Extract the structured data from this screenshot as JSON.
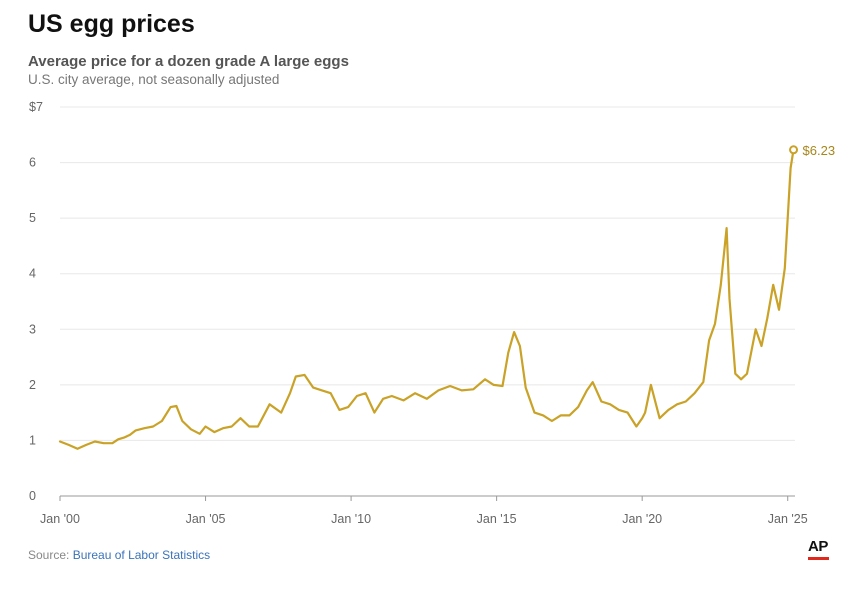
{
  "header": {
    "title": "US egg prices",
    "subtitle": "Average price for a dozen grade A large eggs",
    "note": "U.S. city average, not seasonally adjusted"
  },
  "footer": {
    "source_prefix": "Source:",
    "source_name": "Bureau of Labor Statistics",
    "logo_text": "AP"
  },
  "colors": {
    "line": "#c9a227",
    "grid": "#e8e8e8",
    "axis_text": "#666666",
    "accent_red": "#e0291c"
  },
  "chart_data": {
    "type": "line",
    "title": "US egg prices",
    "ylim": [
      0,
      7
    ],
    "xlim": [
      2000,
      2025.25
    ],
    "yticks": [
      0,
      1,
      2,
      3,
      4,
      5,
      6,
      7
    ],
    "ytick_labels": [
      "0",
      "1",
      "2",
      "3",
      "4",
      "5",
      "6",
      "$7"
    ],
    "xticks": [
      2000,
      2005,
      2010,
      2015,
      2020,
      2025
    ],
    "xtick_labels": [
      "Jan '00",
      "Jan '05",
      "Jan '10",
      "Jan '15",
      "Jan '20",
      "Jan '25"
    ],
    "grid": true,
    "end_label": "$6.23",
    "series": [
      {
        "x": [
          2000.0,
          2000.3,
          2000.6,
          2000.9,
          2001.2,
          2001.5,
          2001.8,
          2002.0,
          2002.2,
          2002.4,
          2002.6,
          2002.9,
          2003.2,
          2003.5,
          2003.8,
          2004.0,
          2004.2,
          2004.5,
          2004.8,
          2005.0,
          2005.3,
          2005.6,
          2005.9,
          2006.2,
          2006.5,
          2006.8,
          2007.2,
          2007.6,
          2007.9,
          2008.1,
          2008.4,
          2008.7,
          2009.0,
          2009.3,
          2009.6,
          2009.9,
          2010.2,
          2010.5,
          2010.8,
          2011.1,
          2011.4,
          2011.8,
          2012.2,
          2012.6,
          2013.0,
          2013.4,
          2013.8,
          2014.2,
          2014.6,
          2014.9,
          2015.2,
          2015.4,
          2015.6,
          2015.8,
          2016.0,
          2016.3,
          2016.6,
          2016.9,
          2017.2,
          2017.5,
          2017.8,
          2018.1,
          2018.3,
          2018.6,
          2018.9,
          2019.2,
          2019.5,
          2019.8,
          2020.0,
          2020.1,
          2020.3,
          2020.6,
          2020.9,
          2021.2,
          2021.5,
          2021.8,
          2022.1,
          2022.3,
          2022.5,
          2022.7,
          2022.9,
          2023.0,
          2023.2,
          2023.4,
          2023.6,
          2023.9,
          2024.1,
          2024.3,
          2024.5,
          2024.7,
          2024.9,
          2025.1,
          2025.2
        ],
        "y": [
          0.98,
          0.92,
          0.85,
          0.92,
          0.98,
          0.95,
          0.95,
          1.02,
          1.05,
          1.1,
          1.18,
          1.22,
          1.25,
          1.35,
          1.6,
          1.62,
          1.35,
          1.2,
          1.12,
          1.25,
          1.15,
          1.22,
          1.25,
          1.4,
          1.25,
          1.25,
          1.65,
          1.5,
          1.85,
          2.15,
          2.18,
          1.95,
          1.9,
          1.85,
          1.55,
          1.6,
          1.8,
          1.85,
          1.5,
          1.75,
          1.8,
          1.72,
          1.85,
          1.75,
          1.9,
          1.98,
          1.9,
          1.92,
          2.1,
          2.0,
          1.98,
          2.58,
          2.95,
          2.7,
          1.95,
          1.5,
          1.45,
          1.35,
          1.45,
          1.45,
          1.6,
          1.9,
          2.05,
          1.7,
          1.65,
          1.55,
          1.5,
          1.25,
          1.4,
          1.5,
          2.0,
          1.4,
          1.55,
          1.65,
          1.7,
          1.85,
          2.05,
          2.8,
          3.1,
          3.8,
          4.82,
          3.55,
          2.2,
          2.1,
          2.2,
          3.0,
          2.7,
          3.2,
          3.8,
          3.35,
          4.1,
          5.9,
          6.23
        ]
      }
    ]
  }
}
